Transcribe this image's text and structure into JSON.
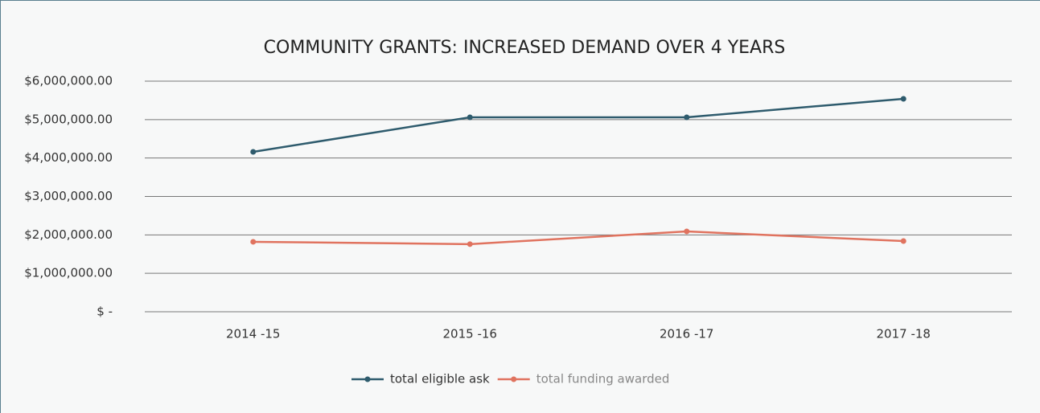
{
  "chart_data": {
    "type": "line",
    "title": "COMMUNITY GRANTS: INCREASED DEMAND OVER 4 YEARS",
    "categories": [
      "2014 -15",
      "2015 -16",
      "2016 -17",
      "2017 -18"
    ],
    "series": [
      {
        "name": "total eligible ask",
        "color": "#2e5b6d",
        "values": [
          4160000,
          5060000,
          5060000,
          5540000
        ]
      },
      {
        "name": "total funding awarded",
        "color": "#e0735f",
        "values": [
          1820000,
          1760000,
          2090000,
          1840000
        ]
      }
    ],
    "ylim": [
      0,
      6000000
    ],
    "yticks": [
      {
        "value": 0,
        "label": "$ -"
      },
      {
        "value": 1000000,
        "label": "$1,000,000.00"
      },
      {
        "value": 2000000,
        "label": "$2,000,000.00"
      },
      {
        "value": 3000000,
        "label": "$3,000,000.00"
      },
      {
        "value": 4000000,
        "label": "$4,000,000.00"
      },
      {
        "value": 5000000,
        "label": "$5,000,000.00"
      },
      {
        "value": 6000000,
        "label": "$6,000,000.00"
      }
    ],
    "grid": true,
    "legend": "bottom"
  }
}
